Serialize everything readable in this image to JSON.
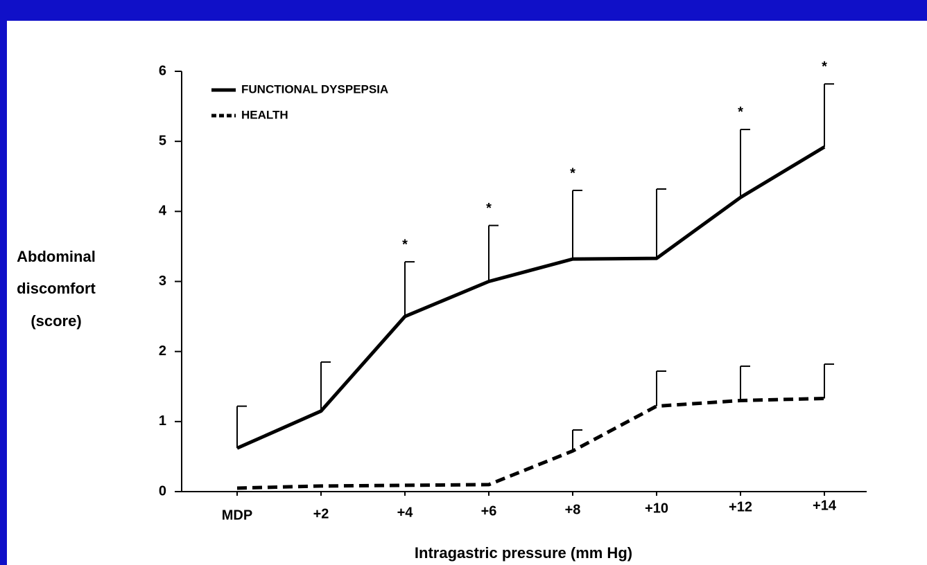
{
  "chart_data": {
    "type": "line",
    "categories": [
      "MDP",
      "+2",
      "+4",
      "+6",
      "+8",
      "+10",
      "+12",
      "+14"
    ],
    "series": [
      {
        "name": "FUNCTIONAL DYSPEPSIA",
        "color": "#000000",
        "style": "solid",
        "values": [
          0.62,
          1.15,
          2.5,
          3.0,
          3.32,
          3.33,
          4.2,
          4.92
        ],
        "errors": [
          0.6,
          0.7,
          0.78,
          0.8,
          0.98,
          0.99,
          0.97,
          0.9
        ]
      },
      {
        "name": "HEALTH",
        "color": "#000000",
        "style": "dashed",
        "values": [
          0.05,
          0.08,
          0.09,
          0.1,
          0.58,
          1.22,
          1.3,
          1.33
        ],
        "errors": [
          null,
          null,
          null,
          null,
          0.3,
          0.5,
          0.49,
          0.49
        ]
      }
    ],
    "significance": [
      null,
      null,
      "*",
      "*",
      "*",
      null,
      "*",
      "*"
    ],
    "ylabel": [
      "Abdominal",
      "discomfort",
      "(score)"
    ],
    "xlabel": "Intragastric pressure (mm Hg)",
    "ylim": [
      0,
      6
    ],
    "yticks": [
      0,
      1,
      2,
      3,
      4,
      5,
      6
    ],
    "legend": "top-left"
  }
}
